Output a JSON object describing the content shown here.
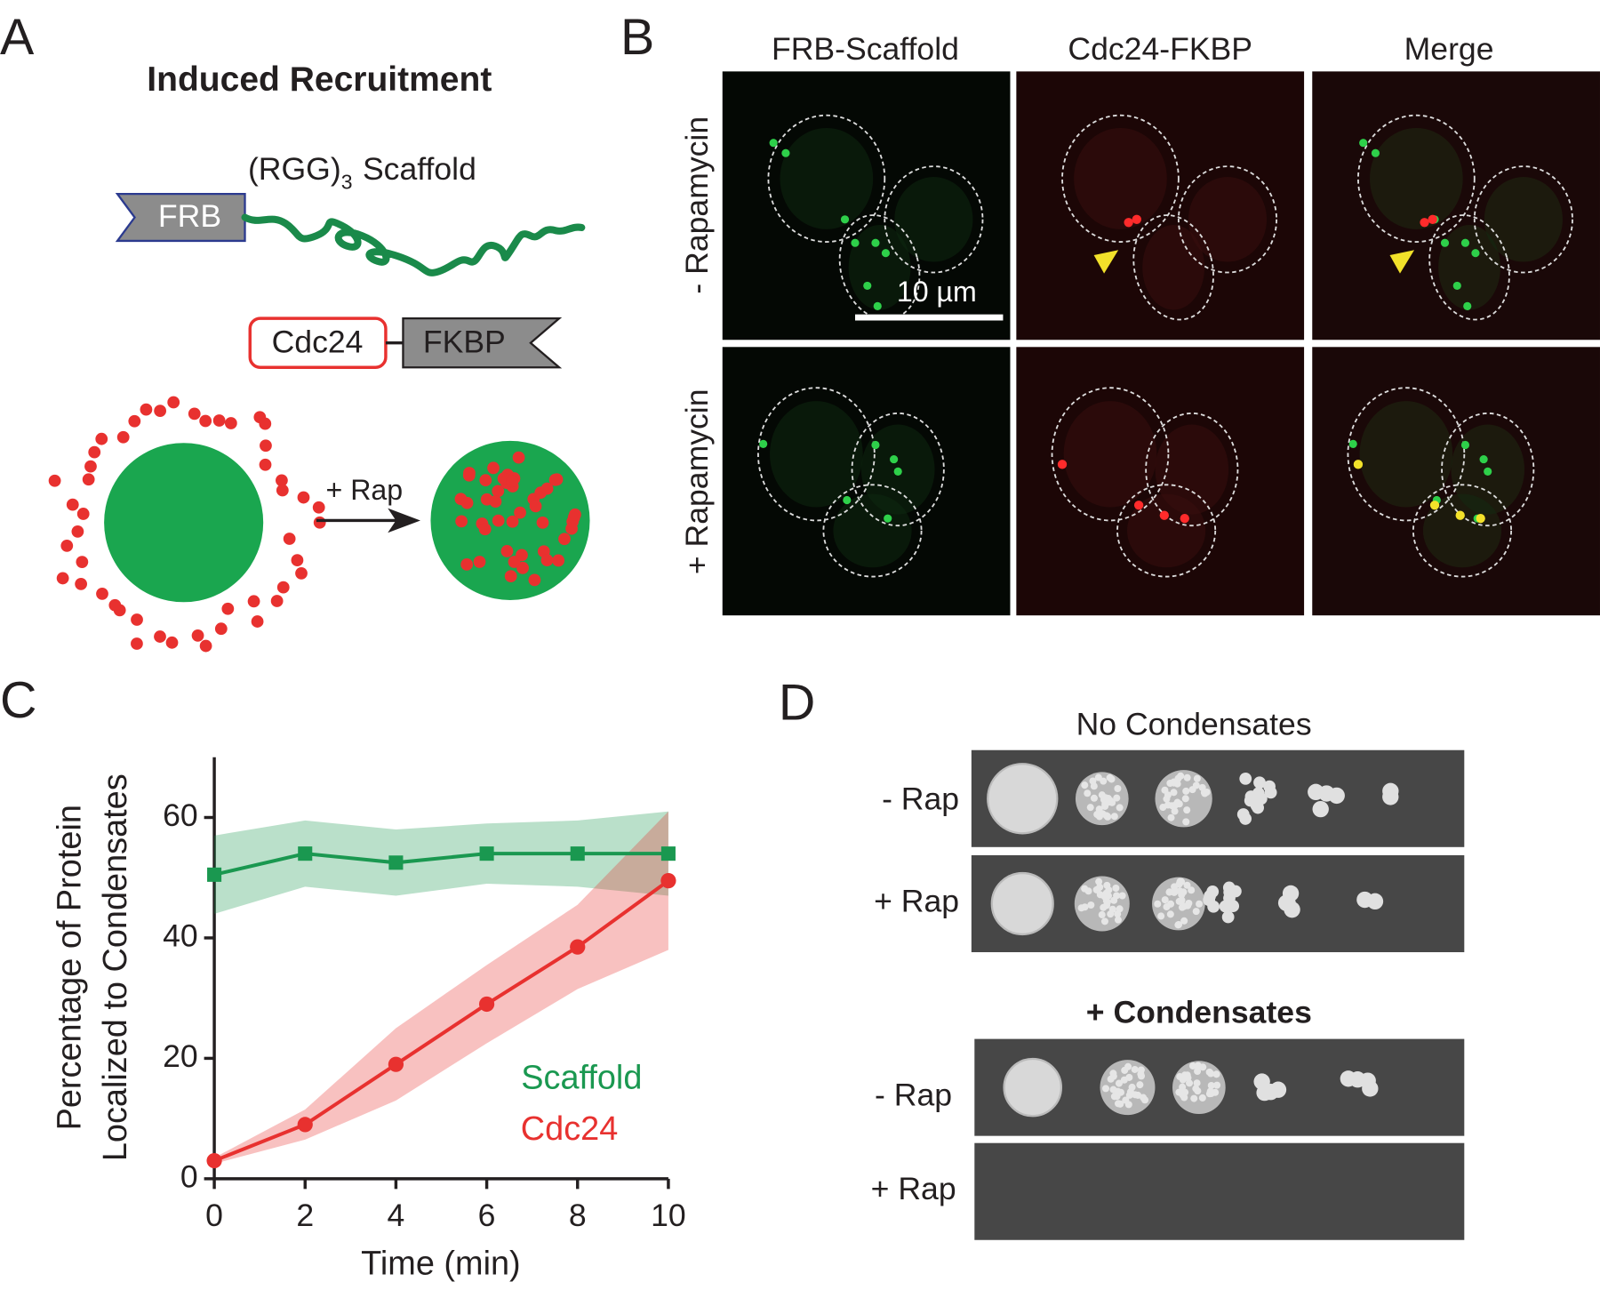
{
  "panel_labels": [
    "A",
    "B",
    "C",
    "D"
  ],
  "panel_a": {
    "title": "Induced Recruitment",
    "scaffold_label": "(RGG)",
    "scaffold_subscript": "3",
    "scaffold_word": "Scaffold",
    "frb": "FRB",
    "cdc24": "Cdc24",
    "fkbp": "FKBP",
    "arrow_label": "+ Rap"
  },
  "panel_b": {
    "columns": [
      "FRB-Scaffold",
      "Cdc24-FKBP",
      "Merge"
    ],
    "rows": [
      "- Rapamycin",
      "+ Rapamycin"
    ],
    "scale_bar": "10 µm"
  },
  "chart_data": {
    "type": "line",
    "xlabel": "Time (min)",
    "ylabel": [
      "Percentage of Protein",
      "Localized to Condensates"
    ],
    "x": [
      0,
      2,
      4,
      6,
      8,
      10
    ],
    "series": [
      {
        "name": "Scaffold",
        "color": "#1a9850",
        "marker": "square",
        "values": [
          50.5,
          54,
          52.5,
          54,
          54,
          54
        ],
        "error": [
          6.5,
          5.5,
          5.5,
          5,
          5.5,
          7
        ]
      },
      {
        "name": "Cdc24",
        "color": "#e8312f",
        "marker": "circle",
        "values": [
          3,
          9,
          19,
          29,
          38.5,
          49.5
        ],
        "error": [
          0.5,
          2.5,
          6,
          6.5,
          7,
          11.5
        ]
      }
    ],
    "xlim": [
      0,
      10
    ],
    "xticks": [
      0,
      2,
      4,
      6,
      8,
      10
    ],
    "ylim": [
      0,
      70
    ],
    "yticks": [
      0,
      20,
      40,
      60
    ]
  },
  "panel_d": {
    "sections": [
      {
        "title": "No Condensates",
        "rows": [
          "- Rap",
          "+ Rap"
        ]
      },
      {
        "title": "+ Condensates",
        "rows": [
          "- Rap",
          "+ Rap"
        ]
      }
    ]
  }
}
